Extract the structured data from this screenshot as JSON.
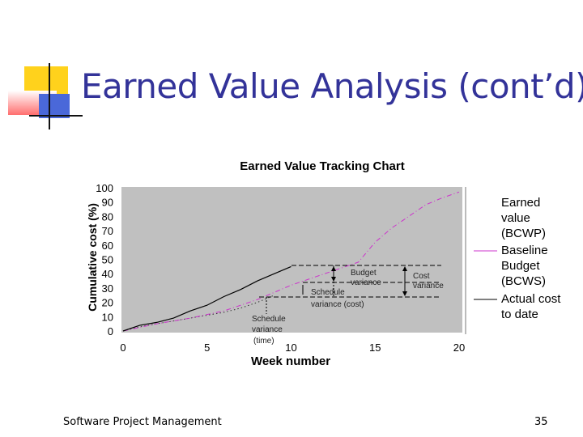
{
  "slide": {
    "title": "Earned Value Analysis (cont’d)",
    "footer_left": "Software Project Management",
    "page_number": "35",
    "colors": {
      "title": "#333399",
      "deco_yellow": "#ffd21c",
      "deco_red": "#ff6f6f",
      "deco_blue": "#4a68d9"
    }
  },
  "chart_data": {
    "type": "line",
    "title": "Earned Value Tracking Chart",
    "xlabel": "Week number",
    "ylabel": "Cumulative cost (%)",
    "xlim": [
      0,
      20
    ],
    "ylim": [
      0,
      100
    ],
    "x_ticks": [
      "0",
      "5",
      "10",
      "15",
      "20"
    ],
    "y_ticks": [
      "0",
      "10",
      "20",
      "30",
      "40",
      "50",
      "60",
      "70",
      "80",
      "90",
      "100"
    ],
    "grid": false,
    "legend_placement": "right",
    "plot_background": "#c0c0c0",
    "series": [
      {
        "name": "Earned value (BCWP)",
        "legend_lines": [
          "Earned",
          "value",
          "(BCWP)"
        ],
        "style": "dotted",
        "color": "#333333",
        "points": [
          [
            0,
            0
          ],
          [
            1,
            3
          ],
          [
            2,
            5
          ],
          [
            3,
            7
          ],
          [
            4,
            9
          ],
          [
            5,
            11
          ],
          [
            6,
            13
          ],
          [
            7,
            16
          ],
          [
            8,
            20
          ],
          [
            9,
            25
          ]
        ]
      },
      {
        "name": "Baseline Budget (BCWS)",
        "legend_lines": [
          "Baseline",
          "Budget",
          "(BCWS)"
        ],
        "style": "dashdot",
        "color": "#cc33cc",
        "points": [
          [
            0,
            0
          ],
          [
            2,
            5
          ],
          [
            4,
            9
          ],
          [
            6,
            14
          ],
          [
            8,
            22
          ],
          [
            10,
            32
          ],
          [
            12,
            40
          ],
          [
            14,
            48
          ],
          [
            15,
            62
          ],
          [
            16,
            72
          ],
          [
            17,
            80
          ],
          [
            18,
            88
          ],
          [
            19,
            93
          ],
          [
            20,
            97
          ]
        ]
      },
      {
        "name": "Actual cost to date",
        "legend_lines": [
          "Actual cost",
          "to date"
        ],
        "style": "solid",
        "color": "#000000",
        "points": [
          [
            0,
            0
          ],
          [
            1,
            4
          ],
          [
            2,
            6
          ],
          [
            3,
            9
          ],
          [
            4,
            14
          ],
          [
            5,
            18
          ],
          [
            6,
            24
          ],
          [
            7,
            29
          ],
          [
            8,
            35
          ],
          [
            9,
            40
          ],
          [
            10,
            45
          ]
        ]
      }
    ],
    "annotations": [
      {
        "id": "budget_variance",
        "lines": [
          "Budget",
          "variance"
        ]
      },
      {
        "id": "cost_variance",
        "lines": [
          "Cost",
          "variance"
        ]
      },
      {
        "id": "schedule_variance_cost",
        "lines": [
          "Schedule",
          "variance (cost)"
        ]
      },
      {
        "id": "schedule_variance_time",
        "lines": [
          "Schedule",
          "variance",
          "(time)"
        ]
      }
    ]
  }
}
